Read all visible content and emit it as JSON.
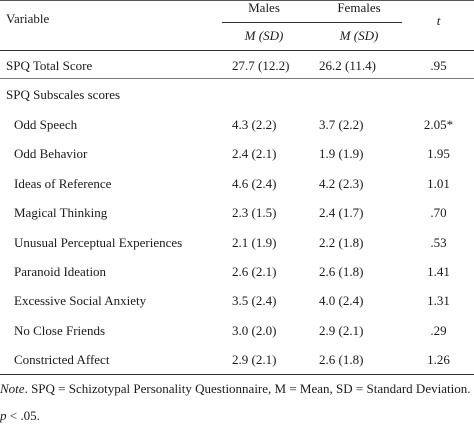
{
  "table": {
    "header": {
      "variable": "Variable",
      "males": "Males",
      "females": "Females",
      "t": "t",
      "males_sub": "M (SD)",
      "females_sub": "M (SD)"
    },
    "total_row": {
      "label": "SPQ Total Score",
      "males": "27.7 (12.2)",
      "females": "26.2  (11.4)",
      "t": ".95"
    },
    "subscales_heading": "SPQ Subscales scores",
    "rows": [
      {
        "label": "Odd Speech",
        "males": "4.3  (2.2)",
        "females": "3.7  (2.2)",
        "t": "2.05*"
      },
      {
        "label": "Odd Behavior",
        "males": "2.4  (2.1)",
        "females": "1.9  (1.9)",
        "t": "1.95"
      },
      {
        "label": "Ideas of Reference",
        "males": "4.6  (2.4)",
        "females": "4.2  (2.3)",
        "t": "1.01"
      },
      {
        "label": "Magical Thinking",
        "males": "2.3  (1.5)",
        "females": "2.4  (1.7)",
        "t": ".70"
      },
      {
        "label": "Unusual Perceptual Experiences",
        "males": "2.1  (1.9)",
        "females": "2.2  (1.8)",
        "t": ".53"
      },
      {
        "label": "Paranoid Ideation",
        "males": "2.6  (2.1)",
        "females": "2.6  (1.8)",
        "t": "1.41"
      },
      {
        "label": "Excessive Social Anxiety",
        "males": "3.5  (2.4)",
        "females": "4.0  (2.4)",
        "t": "1.31"
      },
      {
        "label": "No Close Friends",
        "males": "3.0  (2.0)",
        "females": "2.9  (2.1)",
        "t": ".29"
      },
      {
        "label": "Constricted Affect",
        "males": "2.9  (2.1)",
        "females": "2.6  (1.8)",
        "t": "1.26"
      }
    ],
    "note": {
      "prefix": "Note",
      "text": ". SPQ = Schizotypal Personality Questionnaire, M = Mean, SD = Standard Deviation. *",
      "line2_p": "p",
      "line2_rest": " < .05."
    }
  }
}
